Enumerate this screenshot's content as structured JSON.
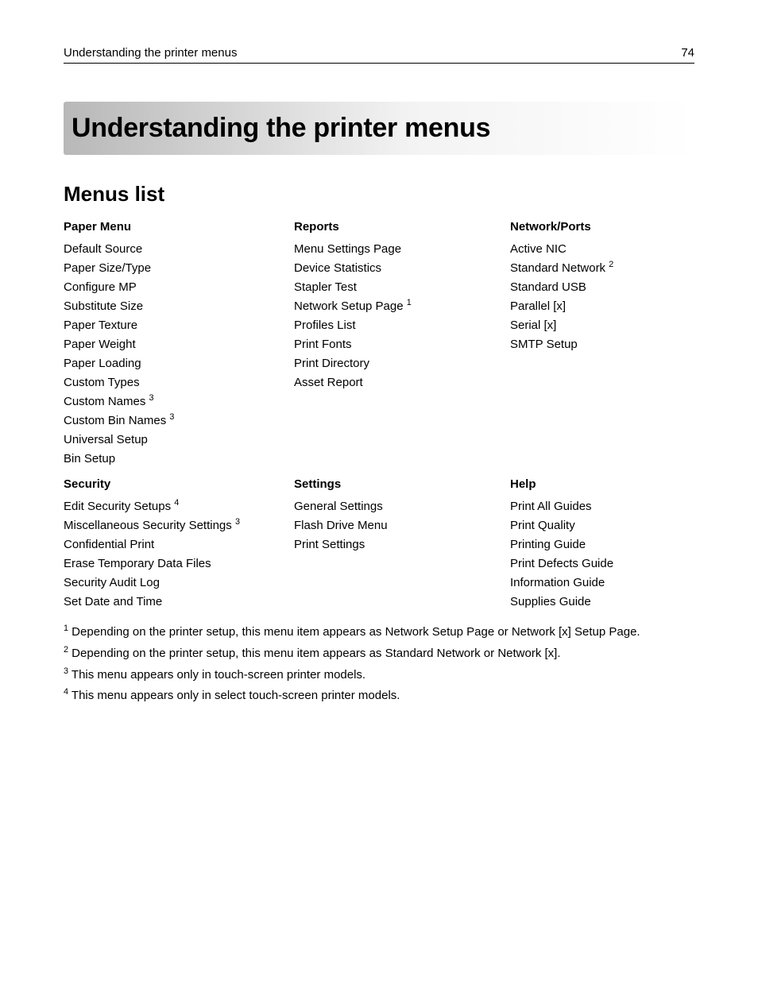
{
  "page": {
    "running_title": "Understanding the printer menus",
    "page_number": "74",
    "chapter_title": "Understanding the printer menus",
    "section_title": "Menus list",
    "colors": {
      "text": "#000000",
      "background": "#ffffff",
      "header_rule": "#000000",
      "title_bar_gradient_from": "#b8b8b8",
      "title_bar_gradient_mid": "#f3f3f3",
      "title_bar_gradient_to": "#ffffff"
    },
    "typography": {
      "body_fontsize_pt": 11,
      "chapter_title_fontsize_pt": 26,
      "section_title_fontsize_pt": 20,
      "font_family": "Segoe UI / Myriad-like sans-serif"
    }
  },
  "columns_row1": {
    "paper_menu": {
      "header": "Paper Menu",
      "items": [
        {
          "label": "Default Source"
        },
        {
          "label": "Paper Size/Type"
        },
        {
          "label": "Configure MP"
        },
        {
          "label": "Substitute Size"
        },
        {
          "label": "Paper Texture"
        },
        {
          "label": "Paper Weight"
        },
        {
          "label": "Paper Loading"
        },
        {
          "label": "Custom Types"
        },
        {
          "label": "Custom Names",
          "sup": "3"
        },
        {
          "label": "Custom Bin Names",
          "sup": "3"
        },
        {
          "label": "Universal Setup"
        },
        {
          "label": "Bin Setup"
        }
      ]
    },
    "reports": {
      "header": "Reports",
      "items": [
        {
          "label": "Menu Settings Page"
        },
        {
          "label": "Device Statistics"
        },
        {
          "label": "Stapler Test"
        },
        {
          "label": "Network Setup Page",
          "sup": "1"
        },
        {
          "label": "Profiles List"
        },
        {
          "label": "Print Fonts"
        },
        {
          "label": "Print Directory"
        },
        {
          "label": "Asset Report"
        }
      ]
    },
    "network_ports": {
      "header": "Network/Ports",
      "items": [
        {
          "label": "Active NIC"
        },
        {
          "label": "Standard Network",
          "sup": "2"
        },
        {
          "label": "Standard USB"
        },
        {
          "label": "Parallel [x]"
        },
        {
          "label": "Serial [x]"
        },
        {
          "label": "SMTP Setup"
        }
      ]
    }
  },
  "columns_row2": {
    "security": {
      "header": "Security",
      "items": [
        {
          "label": "Edit Security Setups",
          "sup": "4"
        },
        {
          "label": "Miscellaneous Security Settings",
          "sup": "3"
        },
        {
          "label": "Confidential Print"
        },
        {
          "label": "Erase Temporary Data Files"
        },
        {
          "label": "Security Audit Log"
        },
        {
          "label": "Set Date and Time"
        }
      ]
    },
    "settings": {
      "header": "Settings",
      "items": [
        {
          "label": "General Settings"
        },
        {
          "label": "Flash Drive Menu"
        },
        {
          "label": "Print Settings"
        }
      ]
    },
    "help": {
      "header": "Help",
      "items": [
        {
          "label": "Print All Guides"
        },
        {
          "label": "Print Quality"
        },
        {
          "label": "Printing Guide"
        },
        {
          "label": "Print Defects Guide"
        },
        {
          "label": "Information Guide"
        },
        {
          "label": "Supplies Guide"
        }
      ]
    }
  },
  "footnotes": [
    {
      "sup": "1",
      "text": " Depending on the printer setup, this menu item appears as Network Setup Page or Network [x] Setup Page."
    },
    {
      "sup": "2",
      "text": " Depending on the printer setup, this menu item appears as Standard Network or Network [x]."
    },
    {
      "sup": "3",
      "text": " This menu appears only in touch-screen printer models."
    },
    {
      "sup": "4",
      "text": " This menu appears only in select touch-screen printer models."
    }
  ]
}
